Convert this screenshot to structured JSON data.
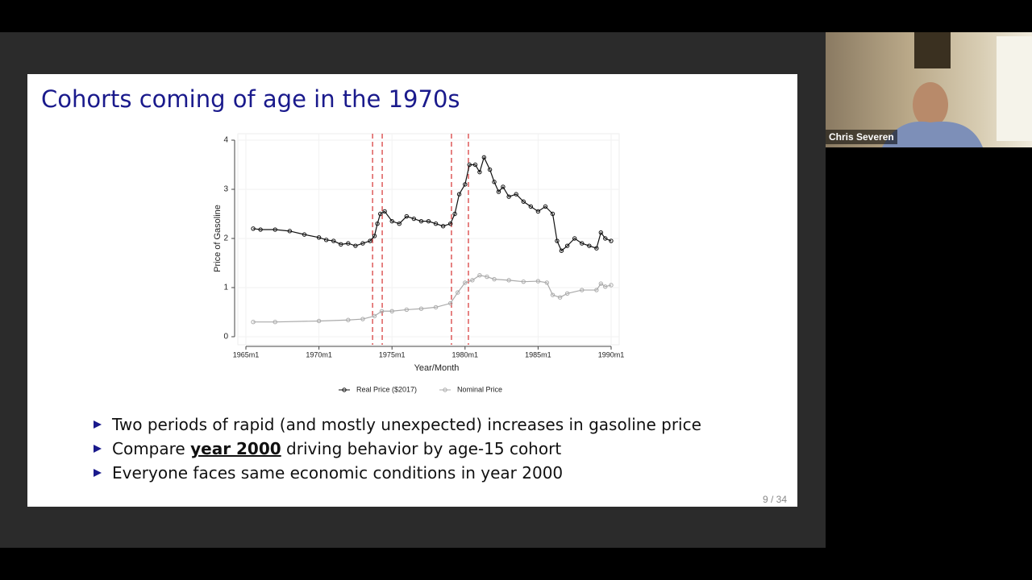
{
  "slide": {
    "title": "Cohorts coming of age in the 1970s",
    "bullets": [
      [
        "Two periods of rapid (and mostly unexpected) increases in gasoline price"
      ],
      [
        "Compare ",
        "year 2000",
        " driving behavior by age-15 cohort"
      ],
      [
        "Everyone faces same economic conditions in year 2000"
      ]
    ],
    "page": "9 / 34"
  },
  "call": {
    "speaker": "Chris Severen"
  },
  "chart_data": {
    "type": "line",
    "y_label": "Price of Gasoline",
    "x_label": "Year/Month",
    "xlim": [
      1965,
      1990
    ],
    "ylim": [
      0,
      4
    ],
    "yticks": [
      0,
      1,
      2,
      3,
      4
    ],
    "xticks": [
      {
        "value": 1965,
        "label": "1965m1"
      },
      {
        "value": 1970,
        "label": "1970m1"
      },
      {
        "value": 1975,
        "label": "1975m1"
      },
      {
        "value": 1980,
        "label": "1980m1"
      },
      {
        "value": 1985,
        "label": "1985m1"
      },
      {
        "value": 1990,
        "label": "1990m1"
      }
    ],
    "grid": true,
    "legend": "bottom",
    "vlines": {
      "color": "#d94040",
      "values": [
        1973.67,
        1974.33,
        1979.07,
        1980.23
      ]
    },
    "series": [
      {
        "name": "Real Price ($2017)",
        "color": "#111111",
        "x": [
          1965.5,
          1966,
          1967,
          1968,
          1969,
          1970,
          1970.5,
          1971,
          1971.5,
          1972,
          1972.5,
          1973,
          1973.5,
          1973.8,
          1974,
          1974.2,
          1974.5,
          1975,
          1975.5,
          1976,
          1976.5,
          1977,
          1977.5,
          1978,
          1978.5,
          1979,
          1979.3,
          1979.6,
          1980,
          1980.3,
          1980.7,
          1981,
          1981.3,
          1981.7,
          1982,
          1982.3,
          1982.6,
          1983,
          1983.5,
          1984,
          1984.5,
          1985,
          1985.5,
          1986,
          1986.3,
          1986.6,
          1987,
          1987.5,
          1988,
          1988.5,
          1989,
          1989.3,
          1989.6,
          1990
        ],
        "values": [
          2.2,
          2.18,
          2.18,
          2.15,
          2.08,
          2.02,
          1.97,
          1.95,
          1.88,
          1.9,
          1.85,
          1.9,
          1.95,
          2.05,
          2.3,
          2.5,
          2.55,
          2.35,
          2.3,
          2.45,
          2.4,
          2.35,
          2.35,
          2.3,
          2.25,
          2.3,
          2.5,
          2.9,
          3.1,
          3.5,
          3.5,
          3.35,
          3.65,
          3.4,
          3.15,
          2.95,
          3.05,
          2.85,
          2.9,
          2.75,
          2.65,
          2.55,
          2.65,
          2.5,
          1.95,
          1.75,
          1.85,
          2.0,
          1.9,
          1.85,
          1.8,
          2.12,
          2.0,
          1.95
        ]
      },
      {
        "name": "Nominal Price",
        "color": "#aaaaaa",
        "x": [
          1965.5,
          1967,
          1970,
          1972,
          1973,
          1973.8,
          1974.3,
          1975,
          1976,
          1977,
          1978,
          1979,
          1979.5,
          1980,
          1980.5,
          1981,
          1981.5,
          1982,
          1983,
          1984,
          1985,
          1985.6,
          1986,
          1986.5,
          1987,
          1988,
          1989,
          1989.3,
          1989.6,
          1990
        ],
        "values": [
          0.3,
          0.3,
          0.32,
          0.34,
          0.36,
          0.42,
          0.52,
          0.52,
          0.55,
          0.57,
          0.6,
          0.68,
          0.9,
          1.1,
          1.15,
          1.25,
          1.22,
          1.17,
          1.15,
          1.12,
          1.13,
          1.1,
          0.85,
          0.8,
          0.88,
          0.95,
          0.95,
          1.08,
          1.02,
          1.05
        ]
      }
    ]
  }
}
